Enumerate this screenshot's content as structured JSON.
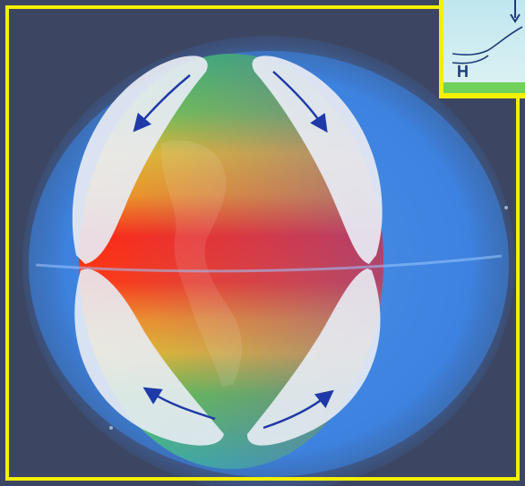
{
  "image": {
    "subject": "globe-atmospheric-circulation",
    "colors": {
      "background": "#3c4663",
      "border": "#f4f000",
      "equator_band": "#ff2a12",
      "mid_band": "#f2a81c",
      "cool_band": "#38c35a",
      "cell_fill": "#e8ecf4",
      "atmosphere": "#3a7de6",
      "arrow": "#1f3aa8"
    },
    "icons": [
      "north-cell-left-arrow-icon",
      "north-cell-right-arrow-icon",
      "south-cell-left-arrow-icon",
      "south-cell-right-arrow-icon"
    ]
  },
  "inset": {
    "label": "H",
    "colors": {
      "sky": "#cbeaf0",
      "ground": "#6fd15a",
      "arrow": "#1d3a7a"
    }
  }
}
